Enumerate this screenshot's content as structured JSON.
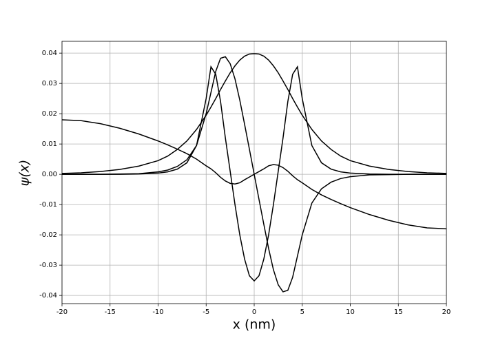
{
  "chart_data": {
    "type": "line",
    "xlabel": "x (nm)",
    "ylabel": "ψ(x)",
    "x": [
      -20,
      -18,
      -16,
      -14,
      -12,
      -10,
      -9,
      -8,
      -7,
      -6,
      -5,
      -4.5,
      -4,
      -3.5,
      -3,
      -2.5,
      -2,
      -1.5,
      -1,
      -0.5,
      0,
      0.5,
      1,
      1.5,
      2,
      2.5,
      3,
      3.5,
      4,
      4.5,
      5,
      6,
      7,
      8,
      9,
      10,
      12,
      14,
      16,
      18,
      20
    ],
    "series": [
      {
        "color": "#000000",
        "values": [
          0.0003,
          0.0005,
          0.0009,
          0.0016,
          0.0027,
          0.0045,
          0.006,
          0.0082,
          0.011,
          0.0148,
          0.0195,
          0.0222,
          0.025,
          0.028,
          0.0308,
          0.0335,
          0.0358,
          0.0377,
          0.039,
          0.0397,
          0.0398,
          0.0397,
          0.039,
          0.0377,
          0.0358,
          0.0335,
          0.0308,
          0.028,
          0.025,
          0.0222,
          0.0195,
          0.0148,
          0.011,
          0.0082,
          0.006,
          0.0045,
          0.0027,
          0.0016,
          0.0009,
          0.0005,
          0.0003
        ]
      },
      {
        "color": "#000000",
        "values": [
          0,
          0,
          0,
          0.0001,
          0.0002,
          0.0008,
          0.0014,
          0.0026,
          0.0048,
          0.0095,
          0.02,
          0.027,
          0.034,
          0.0383,
          0.0388,
          0.0365,
          0.0315,
          0.0245,
          0.0165,
          0.0083,
          0,
          -0.0083,
          -0.0165,
          -0.0245,
          -0.0315,
          -0.0365,
          -0.0388,
          -0.0383,
          -0.034,
          -0.027,
          -0.02,
          -0.0095,
          -0.0048,
          -0.0026,
          -0.0014,
          -0.0008,
          -0.0002,
          -0.0001,
          0,
          0,
          0
        ]
      },
      {
        "color": "#000000",
        "values": [
          0,
          0,
          0,
          0,
          0.0001,
          0.0004,
          0.0008,
          0.0017,
          0.0038,
          0.0095,
          0.025,
          0.0355,
          0.033,
          0.024,
          0.012,
          0.001,
          -0.01,
          -0.02,
          -0.028,
          -0.0335,
          -0.0352,
          -0.0335,
          -0.028,
          -0.02,
          -0.01,
          0.001,
          0.012,
          0.024,
          0.033,
          0.0355,
          0.025,
          0.0095,
          0.0038,
          0.0017,
          0.0008,
          0.0004,
          0.0001,
          0,
          0,
          0,
          0
        ]
      },
      {
        "color": "#000000",
        "values": [
          0.018,
          0.0177,
          0.0167,
          0.0152,
          0.0133,
          0.011,
          0.0097,
          0.0083,
          0.0068,
          0.005,
          0.0028,
          0.0018,
          0.0005,
          -0.001,
          -0.0022,
          -0.003,
          -0.0032,
          -0.0028,
          -0.0018,
          -0.0009,
          0,
          0.0009,
          0.0018,
          0.0028,
          0.0032,
          0.003,
          0.0022,
          0.001,
          -0.0005,
          -0.0018,
          -0.0028,
          -0.005,
          -0.0068,
          -0.0083,
          -0.0097,
          -0.011,
          -0.0133,
          -0.0152,
          -0.0167,
          -0.0177,
          -0.018
        ]
      }
    ],
    "xlim": [
      -20,
      20
    ],
    "xticks": [
      -20,
      -15,
      -10,
      -5,
      0,
      5,
      10,
      15,
      20
    ],
    "ylim": [
      -0.0427,
      0.0439
    ],
    "yticks": [
      -0.04,
      -0.03,
      -0.02,
      -0.01,
      {
        "value": 0,
        "label": "0.00"
      },
      0.01,
      0.02,
      0.03,
      0.04
    ],
    "grid": true
  }
}
